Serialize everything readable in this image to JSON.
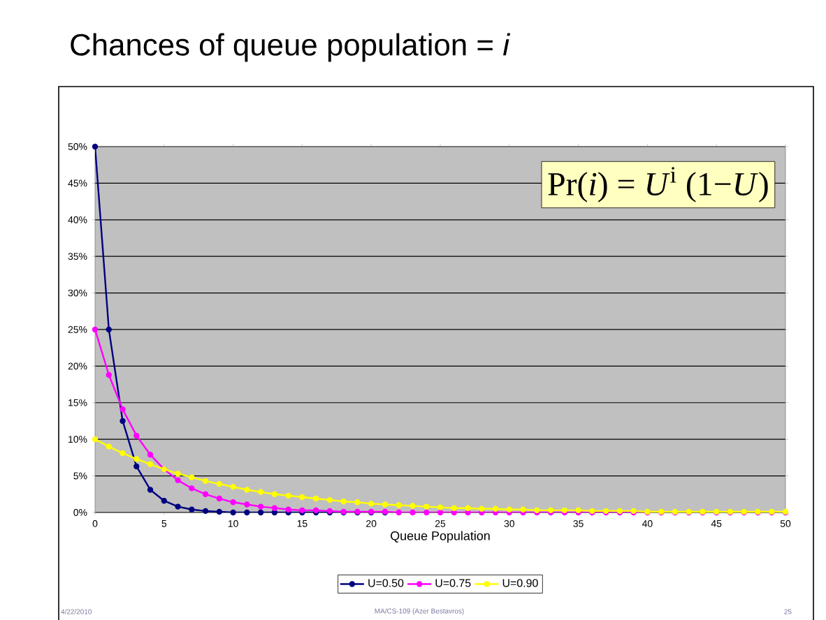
{
  "chart_data": {
    "type": "line",
    "title": "Chances of queue population = *i*",
    "xlabel": "Queue Population",
    "x": [
      0,
      1,
      2,
      3,
      4,
      5,
      6,
      7,
      8,
      9,
      10,
      11,
      12,
      13,
      14,
      15,
      16,
      17,
      18,
      19,
      20,
      21,
      22,
      23,
      24,
      25,
      26,
      27,
      28,
      29,
      30,
      31,
      32,
      33,
      34,
      35,
      36,
      37,
      38,
      39,
      40,
      41,
      42,
      43,
      44,
      45,
      46,
      47,
      48,
      49,
      50
    ],
    "series": [
      {
        "name": "U=0.50",
        "color": "#000080",
        "values": [
          50,
          25,
          12.5,
          6.3,
          3.1,
          1.6,
          0.8,
          0.4,
          0.2,
          0.1,
          0,
          0,
          0,
          0,
          0,
          0,
          0,
          0,
          0,
          0,
          0,
          0,
          null,
          null,
          null,
          null,
          null,
          null,
          null,
          null,
          null,
          null,
          null,
          null,
          null,
          null,
          null,
          null,
          null,
          null,
          null,
          null,
          null,
          null,
          null,
          null,
          null,
          null,
          null,
          null,
          null
        ]
      },
      {
        "name": "U=0.75",
        "color": "#ff00ff",
        "values": [
          25,
          18.8,
          14.1,
          10.5,
          7.9,
          5.9,
          4.4,
          3.3,
          2.5,
          1.9,
          1.4,
          1.1,
          0.8,
          0.6,
          0.4,
          0.3,
          0.3,
          0.2,
          0.1,
          0.1,
          0.1,
          0.1,
          0,
          0,
          0,
          0,
          0,
          0,
          0,
          0,
          0,
          0,
          0,
          0,
          0,
          0,
          0,
          0,
          0,
          0,
          0,
          0,
          0,
          0,
          0,
          0,
          0,
          0,
          0,
          0,
          0
        ]
      },
      {
        "name": "U=0.90",
        "color": "#ffff00",
        "values": [
          10,
          9,
          8.1,
          7.3,
          6.6,
          5.9,
          5.3,
          4.8,
          4.3,
          3.9,
          3.5,
          3.1,
          2.8,
          2.5,
          2.3,
          2.1,
          1.9,
          1.7,
          1.5,
          1.4,
          1.2,
          1.1,
          1,
          0.9,
          0.8,
          0.7,
          0.6,
          0.6,
          0.5,
          0.5,
          0.4,
          0.4,
          0.3,
          0.3,
          0.3,
          0.3,
          0.2,
          0.2,
          0.2,
          0.2,
          0.1,
          0.1,
          0.1,
          0.1,
          0.1,
          0.1,
          0.1,
          0.1,
          0.1,
          0.1,
          0.1
        ]
      }
    ],
    "xlim": [
      0,
      50
    ],
    "xticks": [
      0,
      5,
      10,
      15,
      20,
      25,
      30,
      35,
      40,
      45,
      50
    ],
    "ylim": [
      0,
      50
    ],
    "yticks": [
      {
        "value": 0,
        "label": "0%"
      },
      {
        "value": 5,
        "label": "5%"
      },
      {
        "value": 10,
        "label": "10%"
      },
      {
        "value": 15,
        "label": "15%"
      },
      {
        "value": 20,
        "label": "20%"
      },
      {
        "value": 25,
        "label": "25%"
      },
      {
        "value": 30,
        "label": "30%"
      },
      {
        "value": 35,
        "label": "35%"
      },
      {
        "value": 40,
        "label": "40%"
      },
      {
        "value": 45,
        "label": "45%"
      },
      {
        "value": 50,
        "label": "50%"
      }
    ],
    "grid": "y",
    "legend": "bottom",
    "marker": "circle",
    "line_style": "solid",
    "annotations": [
      "Pr(*i*) = *U*$^{i}$ (1−*U*)",
      "4/22/2010",
      "MA/CS-109 (Azer Bestavros)",
      "25"
    ]
  }
}
